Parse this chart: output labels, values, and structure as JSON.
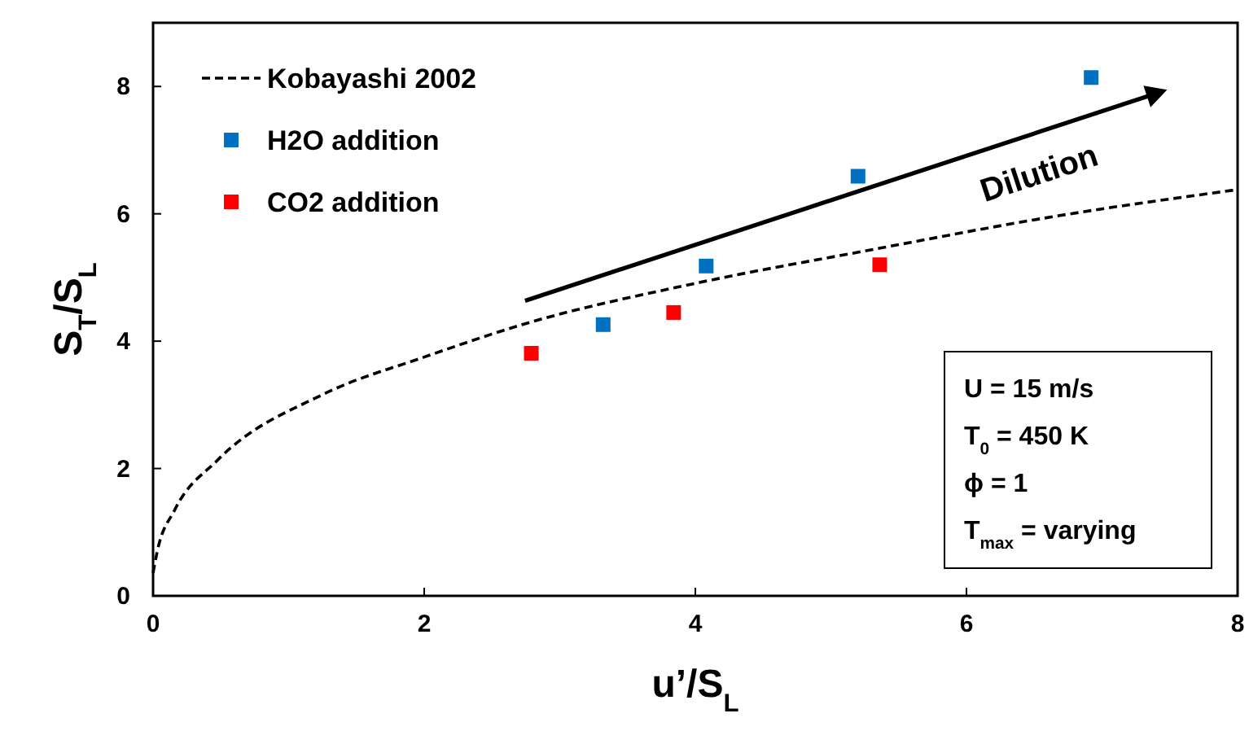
{
  "chart_data": {
    "type": "scatter",
    "xlabel": "u’/S$_{L}$",
    "ylabel": "S$_{T}$/S$_{L}$",
    "xlim": [
      0,
      8
    ],
    "ylim": [
      0,
      9
    ],
    "xticks": [
      0,
      2,
      4,
      6,
      8
    ],
    "yticks": [
      0,
      2,
      4,
      6,
      8
    ],
    "grid": false,
    "legend": "top left",
    "marker": "square",
    "series": [
      {
        "name": "Kobayashi 2002",
        "type": "line",
        "color": "#000000",
        "line_style": "dashed",
        "marker": "none",
        "x": [
          0,
          0.03,
          0.16,
          0.47,
          1.26,
          2.0,
          2.74,
          4.05,
          5.26,
          6.68,
          8
        ],
        "values": [
          0.36,
          0.69,
          1.35,
          2.12,
          3.17,
          3.75,
          4.27,
          4.93,
          5.42,
          5.97,
          6.38
        ]
      },
      {
        "name": "H2O addition",
        "color": "#0070c0",
        "x": [
          3.32,
          4.08,
          5.2,
          6.92
        ],
        "values": [
          4.26,
          5.18,
          6.59,
          8.14
        ]
      },
      {
        "name": "CO2 addition",
        "color": "#ff0000",
        "x": [
          2.79,
          3.84,
          5.36
        ],
        "values": [
          3.81,
          4.45,
          5.2
        ]
      }
    ],
    "annotations": [
      "Dilution",
      "U = 15 m/s",
      "T$_{0}$ = 450 K",
      "ϕ = 1",
      "T$_{max}$ = varying"
    ]
  }
}
